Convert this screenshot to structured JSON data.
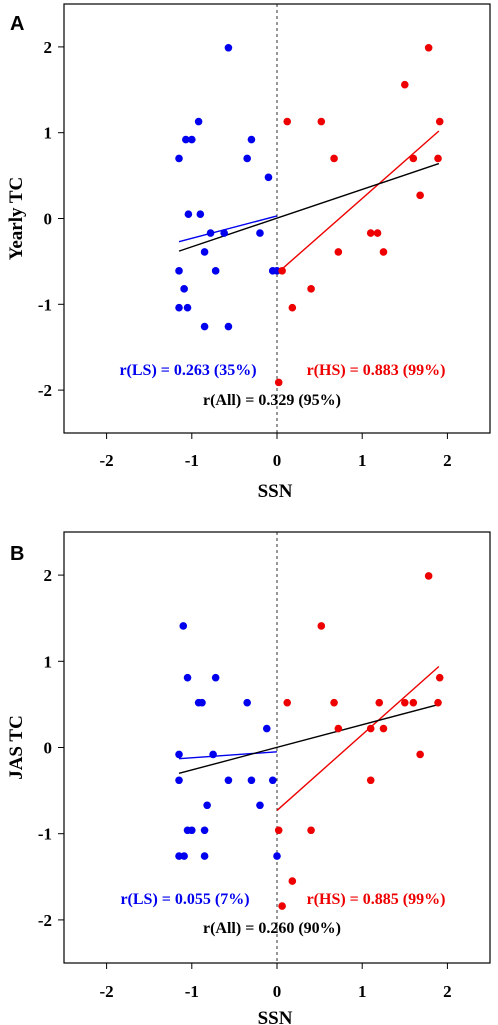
{
  "chart_data": [
    {
      "type": "scatter",
      "panel_label": "A",
      "xlabel": "SSN",
      "ylabel": "Yearly TC",
      "xlim": [
        -2.5,
        2.5
      ],
      "ylim": [
        -2.5,
        2.5
      ],
      "xticks": [
        "-2",
        "-1",
        "0",
        "1",
        "2"
      ],
      "yticks": [
        "2",
        "1",
        "0",
        "-1",
        "-2"
      ],
      "vline_x": 0,
      "colors": {
        "ls": "#0000ee",
        "hs": "#ee0000",
        "all": "#000000"
      },
      "series": [
        {
          "group": "ls",
          "points": [
            [
              -0.57,
              1.99
            ],
            [
              -0.92,
              1.13
            ],
            [
              -1.07,
              0.92
            ],
            [
              -1.0,
              0.92
            ],
            [
              -0.3,
              0.92
            ],
            [
              -1.15,
              0.7
            ],
            [
              -0.35,
              0.7
            ],
            [
              -0.1,
              0.48
            ],
            [
              -1.04,
              0.05
            ],
            [
              -0.9,
              0.05
            ],
            [
              -0.78,
              -0.17
            ],
            [
              -0.62,
              -0.17
            ],
            [
              -0.2,
              -0.17
            ],
            [
              -0.85,
              -0.39
            ],
            [
              -1.15,
              -0.61
            ],
            [
              -0.72,
              -0.61
            ],
            [
              -0.05,
              -0.61
            ],
            [
              0.0,
              -0.61
            ],
            [
              -1.09,
              -0.82
            ],
            [
              -1.15,
              -1.04
            ],
            [
              -1.05,
              -1.04
            ],
            [
              -0.85,
              -1.26
            ],
            [
              -0.57,
              -1.26
            ]
          ]
        },
        {
          "group": "hs",
          "points": [
            [
              1.78,
              1.99
            ],
            [
              1.5,
              1.56
            ],
            [
              0.12,
              1.13
            ],
            [
              0.52,
              1.13
            ],
            [
              1.91,
              1.13
            ],
            [
              0.67,
              0.7
            ],
            [
              1.6,
              0.7
            ],
            [
              1.89,
              0.7
            ],
            [
              1.68,
              0.27
            ],
            [
              1.1,
              -0.17
            ],
            [
              1.18,
              -0.17
            ],
            [
              0.72,
              -0.39
            ],
            [
              1.25,
              -0.39
            ],
            [
              0.06,
              -0.61
            ],
            [
              0.4,
              -0.82
            ],
            [
              0.18,
              -1.04
            ],
            [
              0.02,
              -1.91
            ]
          ]
        }
      ],
      "fits": [
        {
          "group": "ls",
          "x": [
            -1.15,
            0.0
          ],
          "y": [
            -0.27,
            0.03
          ]
        },
        {
          "group": "hs",
          "x": [
            0.0,
            1.9
          ],
          "y": [
            -0.64,
            1.02
          ]
        },
        {
          "group": "all",
          "x": [
            -1.15,
            1.9
          ],
          "y": [
            -0.38,
            0.64
          ]
        }
      ],
      "annotations": [
        {
          "group": "ls",
          "text": "r(LS) = 0.263 (35%)"
        },
        {
          "group": "hs",
          "text": "r(HS) = 0.883 (99%)"
        },
        {
          "group": "all",
          "text": "r(All) = 0.329 (95%)"
        }
      ]
    },
    {
      "type": "scatter",
      "panel_label": "B",
      "xlabel": "SSN",
      "ylabel": "JAS TC",
      "xlim": [
        -2.5,
        2.5
      ],
      "ylim": [
        -2.5,
        2.5
      ],
      "xticks": [
        "-2",
        "-1",
        "0",
        "1",
        "2"
      ],
      "yticks": [
        "2",
        "1",
        "0",
        "-1",
        "-2"
      ],
      "vline_x": 0,
      "colors": {
        "ls": "#0000ee",
        "hs": "#ee0000",
        "all": "#000000"
      },
      "series": [
        {
          "group": "ls",
          "points": [
            [
              -1.1,
              1.41
            ],
            [
              -1.05,
              0.81
            ],
            [
              -0.72,
              0.81
            ],
            [
              -0.92,
              0.52
            ],
            [
              -0.88,
              0.52
            ],
            [
              -0.35,
              0.52
            ],
            [
              -0.12,
              0.22
            ],
            [
              -1.15,
              -0.08
            ],
            [
              -0.75,
              -0.08
            ],
            [
              -1.15,
              -0.38
            ],
            [
              -0.57,
              -0.38
            ],
            [
              -0.3,
              -0.38
            ],
            [
              -0.05,
              -0.38
            ],
            [
              -0.82,
              -0.67
            ],
            [
              -0.2,
              -0.67
            ],
            [
              -1.05,
              -0.96
            ],
            [
              -1.0,
              -0.96
            ],
            [
              -0.85,
              -0.96
            ],
            [
              -1.15,
              -1.26
            ],
            [
              -1.09,
              -1.26
            ],
            [
              -0.85,
              -1.26
            ],
            [
              0.0,
              -1.26
            ]
          ]
        },
        {
          "group": "hs",
          "points": [
            [
              1.78,
              1.99
            ],
            [
              0.52,
              1.41
            ],
            [
              1.91,
              0.81
            ],
            [
              0.12,
              0.52
            ],
            [
              0.67,
              0.52
            ],
            [
              1.2,
              0.52
            ],
            [
              1.5,
              0.52
            ],
            [
              1.6,
              0.52
            ],
            [
              1.89,
              0.52
            ],
            [
              0.72,
              0.22
            ],
            [
              1.1,
              0.22
            ],
            [
              1.25,
              0.22
            ],
            [
              1.68,
              -0.08
            ],
            [
              1.1,
              -0.38
            ],
            [
              0.02,
              -0.96
            ],
            [
              0.4,
              -0.96
            ],
            [
              0.18,
              -1.55
            ],
            [
              0.06,
              -1.84
            ]
          ]
        }
      ],
      "fits": [
        {
          "group": "ls",
          "x": [
            -1.15,
            0.0
          ],
          "y": [
            -0.13,
            -0.05
          ]
        },
        {
          "group": "hs",
          "x": [
            0.0,
            1.9
          ],
          "y": [
            -0.73,
            0.94
          ]
        },
        {
          "group": "all",
          "x": [
            -1.15,
            1.9
          ],
          "y": [
            -0.3,
            0.5
          ]
        }
      ],
      "annotations": [
        {
          "group": "ls",
          "text": "r(LS) = 0.055 (7%)"
        },
        {
          "group": "hs",
          "text": "r(HS) = 0.885 (99%)"
        },
        {
          "group": "all",
          "text": "r(All) = 0.260 (90%)"
        }
      ]
    }
  ]
}
